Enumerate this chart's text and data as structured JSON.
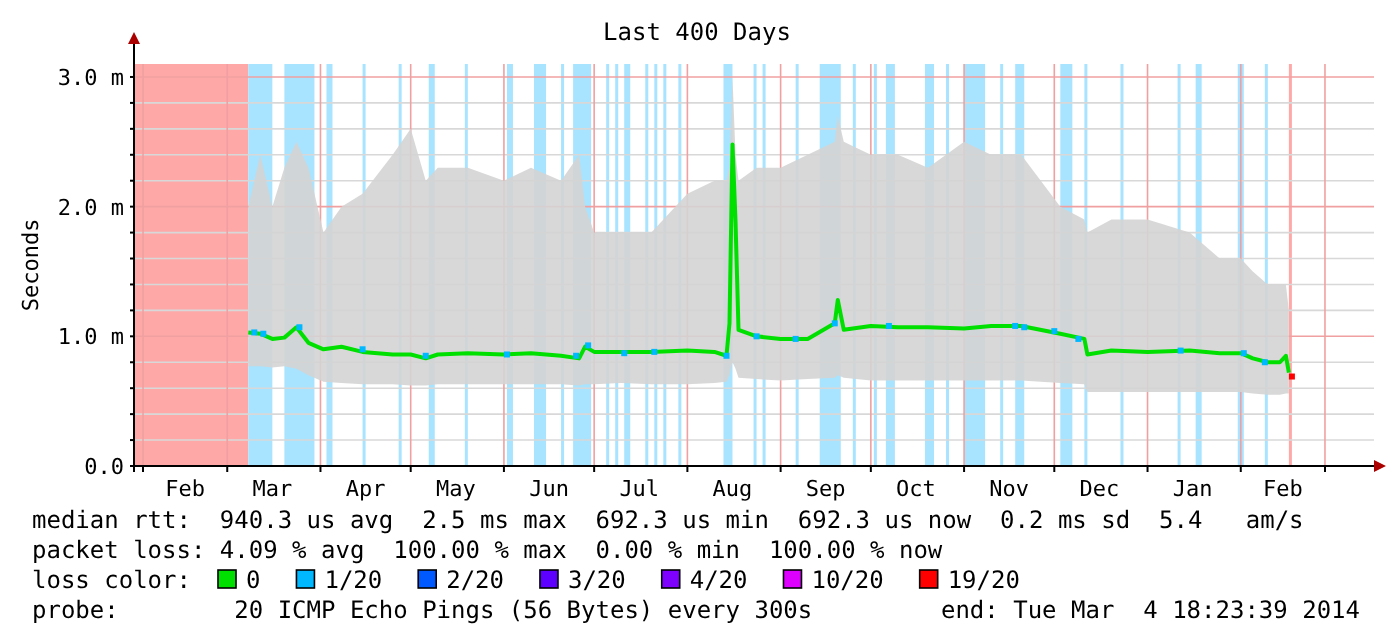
{
  "chart_data": {
    "type": "line",
    "title": "Last 400 Days",
    "ylabel": "Seconds",
    "legend_title": "loss color:",
    "legend": "bottom",
    "grid": true,
    "xlim": [
      "2013-01-29",
      "2014-03-04"
    ],
    "xticks": [
      {
        "value": "2013-02-01",
        "label": null
      },
      {
        "value": "2013-02-15",
        "label": "Feb"
      },
      {
        "value": "2013-03-01",
        "label": null
      },
      {
        "value": "2013-03-16",
        "label": "Mar"
      },
      {
        "value": "2013-04-01",
        "label": null
      },
      {
        "value": "2013-04-16",
        "label": "Apr"
      },
      {
        "value": "2013-05-01",
        "label": null
      },
      {
        "value": "2013-05-16",
        "label": "May"
      },
      {
        "value": "2013-06-01",
        "label": null
      },
      {
        "value": "2013-06-16",
        "label": "Jun"
      },
      {
        "value": "2013-07-01",
        "label": null
      },
      {
        "value": "2013-07-16",
        "label": "Jul"
      },
      {
        "value": "2013-08-01",
        "label": null
      },
      {
        "value": "2013-08-16",
        "label": "Aug"
      },
      {
        "value": "2013-09-01",
        "label": null
      },
      {
        "value": "2013-09-16",
        "label": "Sep"
      },
      {
        "value": "2013-10-01",
        "label": null
      },
      {
        "value": "2013-10-16",
        "label": "Oct"
      },
      {
        "value": "2013-11-01",
        "label": null
      },
      {
        "value": "2013-11-16",
        "label": "Nov"
      },
      {
        "value": "2013-12-01",
        "label": null
      },
      {
        "value": "2013-12-16",
        "label": "Dec"
      },
      {
        "value": "2014-01-01",
        "label": null
      },
      {
        "value": "2014-01-16",
        "label": "Jan"
      },
      {
        "value": "2014-02-01",
        "label": null
      },
      {
        "value": "2014-02-15",
        "label": "Feb"
      },
      {
        "value": "2014-03-01",
        "label": null
      }
    ],
    "ylim": [
      0,
      3.1
    ],
    "yticks": [
      {
        "value": 0,
        "label": "0.0"
      },
      {
        "value": 0.2,
        "label": null
      },
      {
        "value": 0.4,
        "label": null
      },
      {
        "value": 0.6,
        "label": null
      },
      {
        "value": 0.8,
        "label": null
      },
      {
        "value": 1,
        "label": "1.0 m"
      },
      {
        "value": 1.2,
        "label": null
      },
      {
        "value": 1.4,
        "label": null
      },
      {
        "value": 1.6,
        "label": null
      },
      {
        "value": 1.8,
        "label": null
      },
      {
        "value": 2,
        "label": "2.0 m"
      },
      {
        "value": 2.2,
        "label": null
      },
      {
        "value": 2.4,
        "label": null
      },
      {
        "value": 2.6,
        "label": null
      },
      {
        "value": 2.8,
        "label": null
      },
      {
        "value": 3,
        "label": "3.0 m"
      }
    ],
    "bands": [
      {
        "axis": "x",
        "from": "2013-01-29",
        "to": "2013-03-08",
        "color": "#ffa8a8"
      },
      {
        "axis": "x",
        "from": "2013-03-08",
        "to": "2013-03-16",
        "color": "#a8e4ff"
      },
      {
        "axis": "x",
        "from": "2013-03-20",
        "to": "2013-03-30",
        "color": "#a8e4ff"
      },
      {
        "axis": "x",
        "from": "2013-04-03",
        "to": "2013-04-05",
        "color": "#a8e4ff"
      },
      {
        "axis": "x",
        "from": "2013-04-15",
        "to": "2013-04-16",
        "color": "#a8e4ff"
      },
      {
        "axis": "x",
        "from": "2013-04-27",
        "to": "2013-04-28",
        "color": "#a8e4ff"
      },
      {
        "axis": "x",
        "from": "2013-05-07",
        "to": "2013-05-09",
        "color": "#a8e4ff"
      },
      {
        "axis": "x",
        "from": "2013-05-19",
        "to": "2013-05-20",
        "color": "#a8e4ff"
      },
      {
        "axis": "x",
        "from": "2013-06-02",
        "to": "2013-06-04",
        "color": "#a8e4ff"
      },
      {
        "axis": "x",
        "from": "2013-06-11",
        "to": "2013-06-15",
        "color": "#a8e4ff"
      },
      {
        "axis": "x",
        "from": "2013-06-20",
        "to": "2013-06-21",
        "color": "#a8e4ff"
      },
      {
        "axis": "x",
        "from": "2013-06-24",
        "to": "2013-06-30",
        "color": "#a8e4ff"
      },
      {
        "axis": "x",
        "from": "2013-07-05",
        "to": "2013-07-06",
        "color": "#a8e4ff"
      },
      {
        "axis": "x",
        "from": "2013-07-08",
        "to": "2013-07-09",
        "color": "#a8e4ff"
      },
      {
        "axis": "x",
        "from": "2013-07-11",
        "to": "2013-07-13",
        "color": "#a8e4ff"
      },
      {
        "axis": "x",
        "from": "2013-07-18",
        "to": "2013-07-19",
        "color": "#a8e4ff"
      },
      {
        "axis": "x",
        "from": "2013-07-21",
        "to": "2013-07-22",
        "color": "#a8e4ff"
      },
      {
        "axis": "x",
        "from": "2013-07-24",
        "to": "2013-07-25",
        "color": "#a8e4ff"
      },
      {
        "axis": "x",
        "from": "2013-07-29",
        "to": "2013-07-30",
        "color": "#a8e4ff"
      },
      {
        "axis": "x",
        "from": "2013-08-13",
        "to": "2013-08-16",
        "color": "#a8e4ff"
      },
      {
        "axis": "x",
        "from": "2013-08-23",
        "to": "2013-08-24",
        "color": "#a8e4ff"
      },
      {
        "axis": "x",
        "from": "2013-08-26",
        "to": "2013-08-27",
        "color": "#a8e4ff"
      },
      {
        "axis": "x",
        "from": "2013-09-06",
        "to": "2013-09-07",
        "color": "#a8e4ff"
      },
      {
        "axis": "x",
        "from": "2013-09-14",
        "to": "2013-09-21",
        "color": "#a8e4ff"
      },
      {
        "axis": "x",
        "from": "2013-09-25",
        "to": "2013-09-26",
        "color": "#a8e4ff"
      },
      {
        "axis": "x",
        "from": "2013-10-02",
        "to": "2013-10-03",
        "color": "#a8e4ff"
      },
      {
        "axis": "x",
        "from": "2013-10-06",
        "to": "2013-10-09",
        "color": "#a8e4ff"
      },
      {
        "axis": "x",
        "from": "2013-10-19",
        "to": "2013-10-22",
        "color": "#a8e4ff"
      },
      {
        "axis": "x",
        "from": "2013-10-26",
        "to": "2013-10-27",
        "color": "#a8e4ff"
      },
      {
        "axis": "x",
        "from": "2013-11-01",
        "to": "2013-11-08",
        "color": "#a8e4ff"
      },
      {
        "axis": "x",
        "from": "2013-11-13",
        "to": "2013-11-14",
        "color": "#a8e4ff"
      },
      {
        "axis": "x",
        "from": "2013-11-18",
        "to": "2013-11-21",
        "color": "#a8e4ff"
      },
      {
        "axis": "x",
        "from": "2013-12-03",
        "to": "2013-12-07",
        "color": "#a8e4ff"
      },
      {
        "axis": "x",
        "from": "2013-12-11",
        "to": "2013-12-12",
        "color": "#a8e4ff"
      },
      {
        "axis": "x",
        "from": "2013-12-23",
        "to": "2013-12-24",
        "color": "#a8e4ff"
      },
      {
        "axis": "x",
        "from": "2014-01-11",
        "to": "2014-01-12",
        "color": "#a8e4ff"
      },
      {
        "axis": "x",
        "from": "2014-01-17",
        "to": "2014-01-19",
        "color": "#a8e4ff"
      },
      {
        "axis": "x",
        "from": "2014-01-31",
        "to": "2014-02-02",
        "color": "#a8e4ff"
      },
      {
        "axis": "x",
        "from": "2014-02-09",
        "to": "2014-02-10",
        "color": "#a8e4ff"
      },
      {
        "axis": "x",
        "from": "2014-02-17",
        "to": "2014-02-18",
        "color": "#ffa8a8"
      }
    ],
    "series": [
      {
        "name": "0",
        "color": "#00e000",
        "x": [
          "2013-03-08",
          "2013-03-12",
          "2013-03-16",
          "2013-03-20",
          "2013-03-24",
          "2013-03-28",
          "2013-04-02",
          "2013-04-08",
          "2013-04-15",
          "2013-04-25",
          "2013-05-01",
          "2013-05-06",
          "2013-05-10",
          "2013-05-20",
          "2013-06-01",
          "2013-06-10",
          "2013-06-20",
          "2013-06-26",
          "2013-06-28",
          "2013-07-01",
          "2013-07-10",
          "2013-07-20",
          "2013-08-01",
          "2013-08-10",
          "2013-08-14",
          "2013-08-15",
          "2013-08-16",
          "2013-08-17",
          "2013-08-18",
          "2013-08-24",
          "2013-09-01",
          "2013-09-10",
          "2013-09-19",
          "2013-09-20",
          "2013-09-22",
          "2013-10-01",
          "2013-10-10",
          "2013-10-20",
          "2013-11-01",
          "2013-11-10",
          "2013-11-20",
          "2013-12-03",
          "2013-12-11",
          "2013-12-12",
          "2013-12-20",
          "2014-01-01",
          "2014-01-15",
          "2014-01-25",
          "2014-02-01",
          "2014-02-05",
          "2014-02-10",
          "2014-02-14",
          "2014-02-16",
          "2014-02-17"
        ],
        "values": [
          1.03,
          1.02,
          0.98,
          0.99,
          1.07,
          0.95,
          0.9,
          0.92,
          0.88,
          0.86,
          0.86,
          0.83,
          0.86,
          0.87,
          0.86,
          0.87,
          0.85,
          0.83,
          0.92,
          0.88,
          0.88,
          0.88,
          0.89,
          0.88,
          0.85,
          1.1,
          2.48,
          1.89,
          1.05,
          1.0,
          0.98,
          0.98,
          1.1,
          1.28,
          1.05,
          1.08,
          1.07,
          1.07,
          1.06,
          1.08,
          1.08,
          1.02,
          0.98,
          0.86,
          0.89,
          0.88,
          0.89,
          0.87,
          0.87,
          0.83,
          0.8,
          0.8,
          0.85,
          0.72
        ],
        "lower": [
          0.77,
          0.77,
          0.76,
          0.77,
          0.75,
          0.7,
          0.65,
          0.64,
          0.63,
          0.63,
          0.62,
          0.62,
          0.63,
          0.63,
          0.63,
          0.63,
          0.63,
          0.62,
          0.63,
          0.63,
          0.64,
          0.63,
          0.63,
          0.64,
          0.65,
          0.7,
          0.8,
          0.75,
          0.68,
          0.67,
          0.66,
          0.67,
          0.68,
          0.7,
          0.68,
          0.66,
          0.66,
          0.66,
          0.66,
          0.66,
          0.66,
          0.64,
          0.63,
          0.57,
          0.57,
          0.57,
          0.57,
          0.57,
          0.57,
          0.56,
          0.55,
          0.55,
          0.56,
          0.56
        ],
        "upper": [
          2.0,
          2.4,
          2.0,
          2.3,
          2.5,
          2.3,
          1.8,
          2.0,
          2.1,
          2.4,
          2.6,
          2.2,
          2.3,
          2.3,
          2.2,
          2.3,
          2.2,
          2.4,
          2.0,
          1.8,
          1.8,
          1.8,
          2.1,
          2.2,
          2.2,
          2.3,
          3.0,
          2.4,
          2.2,
          2.3,
          2.3,
          2.4,
          2.5,
          2.7,
          2.5,
          2.4,
          2.4,
          2.3,
          2.5,
          2.4,
          2.4,
          2.0,
          1.9,
          1.8,
          1.9,
          1.9,
          1.8,
          1.6,
          1.6,
          1.5,
          1.4,
          1.4,
          1.4,
          1.2
        ]
      },
      {
        "name": "1/20",
        "type": "scatter",
        "marker": "square",
        "color": "#00b8ff",
        "x": [
          "2013-03-10",
          "2013-03-13",
          "2013-03-25",
          "2013-04-15",
          "2013-05-06",
          "2013-06-02",
          "2013-06-25",
          "2013-06-29",
          "2013-07-11",
          "2013-07-21",
          "2013-08-14",
          "2013-08-24",
          "2013-09-06",
          "2013-09-19",
          "2013-10-07",
          "2013-11-18",
          "2013-11-21",
          "2013-12-01",
          "2013-12-09",
          "2014-01-12",
          "2014-02-02",
          "2014-02-09"
        ],
        "values": [
          1.03,
          1.02,
          1.07,
          0.9,
          0.85,
          0.86,
          0.85,
          0.93,
          0.87,
          0.88,
          0.85,
          1.0,
          0.98,
          1.1,
          1.08,
          1.08,
          1.07,
          1.04,
          0.98,
          0.89,
          0.87,
          0.8
        ]
      },
      {
        "name": "2/20",
        "type": "scatter",
        "color": "#0059ff"
      },
      {
        "name": "3/20",
        "type": "scatter",
        "color": "#5e00ff"
      },
      {
        "name": "4/20",
        "type": "scatter",
        "color": "#7e00ff"
      },
      {
        "name": "10/20",
        "type": "scatter",
        "color": "#dd00ff"
      },
      {
        "name": "19/20",
        "type": "scatter",
        "marker": "square",
        "color": "#ff0000",
        "x": [
          "2014-02-18"
        ],
        "values": [
          0.69
        ]
      }
    ],
    "annotations": [
      "median rtt:  940.3 us avg  2.5 ms max  692.3 us min  692.3 us now  0.2 ms sd  5.4   am/s",
      "packet loss: 4.09 % avg  100.00 % max  0.00 % min  100.00 % now",
      "probe:        20 ICMP Echo Pings (56 Bytes) every 300s",
      "end: Tue Mar  4 18:23:39 2014"
    ]
  }
}
